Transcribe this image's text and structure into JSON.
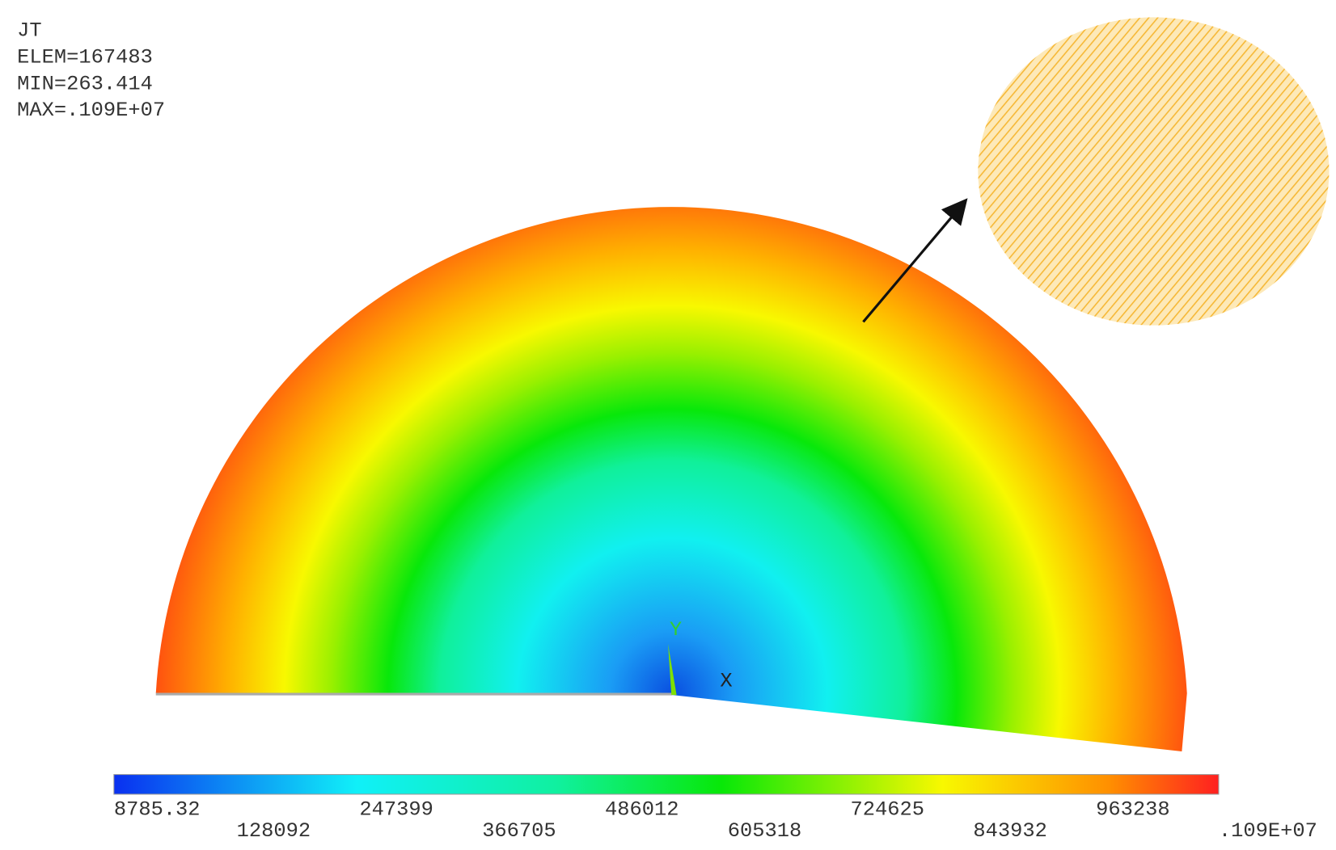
{
  "info": [
    "JT",
    "ELEM=167483",
    "MIN=263.414",
    "MAX=.109E+07"
  ],
  "axes": {
    "y": "Y",
    "x": "X"
  },
  "colorbar": {
    "labels": [
      "8785.32",
      "128092",
      "247399",
      "366705",
      "486012",
      "605318",
      "724625",
      "843932",
      "963238",
      ".109E+07"
    ]
  }
}
